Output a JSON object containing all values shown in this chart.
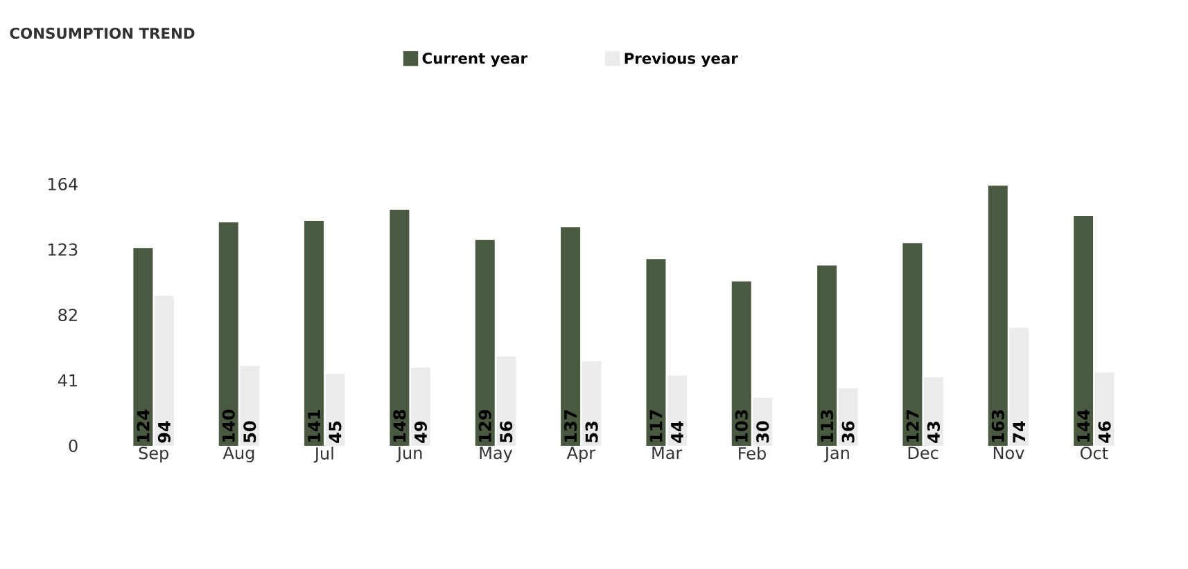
{
  "chart_data": {
    "type": "bar",
    "title": "CONSUMPTION TREND",
    "categories": [
      "Sep",
      "Aug",
      "Jul",
      "Jun",
      "May",
      "Apr",
      "Mar",
      "Feb",
      "Jan",
      "Dec",
      "Nov",
      "Oct"
    ],
    "series": [
      {
        "name": "Current year",
        "color": "#4a5a40",
        "values": [
          124,
          140,
          141,
          148,
          129,
          137,
          117,
          103,
          113,
          127,
          163,
          144
        ]
      },
      {
        "name": "Previous year",
        "color": "#ebebeb",
        "values": [
          94,
          50,
          45,
          49,
          56,
          53,
          44,
          30,
          36,
          43,
          74,
          46
        ]
      }
    ],
    "ylim": [
      0,
      164
    ],
    "yticks": [
      0,
      41,
      82,
      123,
      164
    ],
    "grid": false,
    "legend": "top",
    "data_labels": true
  }
}
